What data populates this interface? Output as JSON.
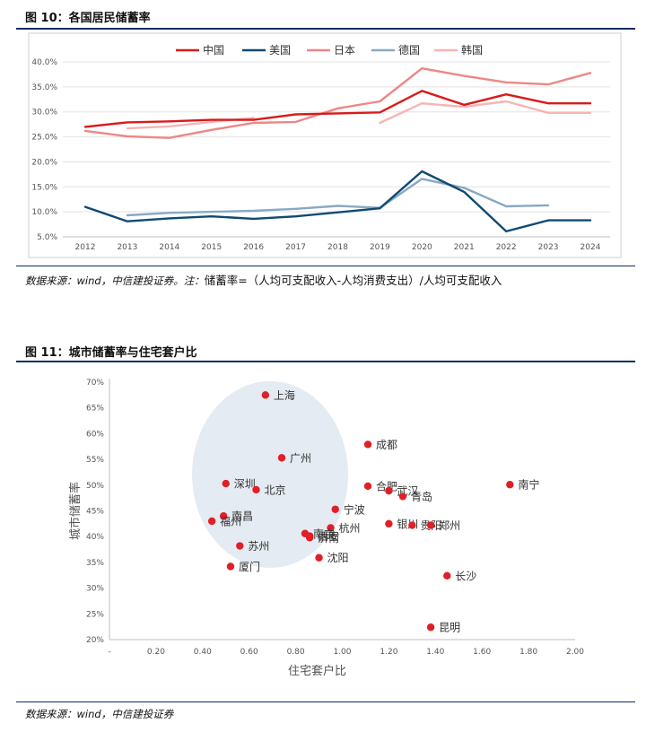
{
  "figure1": {
    "title": "图 10：各国居民储蓄率",
    "source_prefix": "数据来源：wind，中信建投证券。注：",
    "source_note": "储蓄率=（人均可支配收入-人均消费支出）/人均可支配收入"
  },
  "figure2": {
    "title": "图 11：城市储蓄率与住宅套户比",
    "source": "数据来源：wind，中信建投证券"
  },
  "chart_data": [
    {
      "type": "line",
      "title": "",
      "xlabel": "",
      "ylabel": "",
      "x": [
        "2012",
        "2013",
        "2014",
        "2015",
        "2016",
        "2017",
        "2018",
        "2019",
        "2020",
        "2021",
        "2022",
        "2023",
        "2024"
      ],
      "yticks": [
        "5.0%",
        "10.0%",
        "15.0%",
        "20.0%",
        "25.0%",
        "30.0%",
        "35.0%",
        "40.0%"
      ],
      "ylim": [
        5,
        40
      ],
      "grid": "horizontal",
      "legend_position": "top",
      "series": [
        {
          "name": "中国",
          "color": "#d91a1a",
          "values": [
            27.0,
            27.9,
            28.1,
            28.4,
            28.4,
            29.5,
            29.7,
            29.9,
            34.2,
            31.4,
            33.5,
            31.7,
            31.7
          ]
        },
        {
          "name": "美国",
          "color": "#0f4a73",
          "values": [
            11.0,
            8.1,
            8.7,
            9.1,
            8.6,
            9.1,
            9.9,
            10.7,
            18.1,
            14.0,
            6.1,
            8.3,
            8.3
          ]
        },
        {
          "name": "日本",
          "color": "#ee8785",
          "values": [
            26.2,
            25.1,
            24.8,
            26.4,
            27.8,
            28.0,
            30.7,
            32.1,
            38.7,
            37.2,
            35.9,
            35.5,
            37.8
          ]
        },
        {
          "name": "德国",
          "color": "#88a9c4",
          "values": [
            null,
            9.3,
            9.8,
            10.0,
            10.2,
            10.6,
            11.2,
            10.8,
            16.6,
            14.8,
            11.1,
            11.3,
            null
          ]
        },
        {
          "name": "韩国",
          "color": "#f5b5b5",
          "values": [
            null,
            26.7,
            27.1,
            28.0,
            28.8,
            null,
            null,
            27.8,
            31.7,
            31.0,
            32.1,
            29.8,
            29.8
          ]
        }
      ]
    },
    {
      "type": "scatter",
      "title": "",
      "xlabel": "住宅套户比",
      "ylabel": "城市储蓄率",
      "xticks": [
        "-",
        "0.20",
        "0.40",
        "0.60",
        "0.80",
        "1.00",
        "1.20",
        "1.40",
        "1.60",
        "1.80",
        "2.00"
      ],
      "yticks": [
        "20%",
        "25%",
        "30%",
        "35%",
        "40%",
        "45%",
        "50%",
        "55%",
        "60%",
        "65%",
        "70%"
      ],
      "xlim": [
        0,
        2.0
      ],
      "ylim": [
        20,
        70
      ],
      "point_color": "#e01f26",
      "highlight_ellipse_color": "#e4ebf2",
      "points": [
        {
          "label": "上海",
          "x": 0.67,
          "y": 67.5
        },
        {
          "label": "成都",
          "x": 1.11,
          "y": 57.9
        },
        {
          "label": "广州",
          "x": 0.74,
          "y": 55.3
        },
        {
          "label": "深圳",
          "x": 0.5,
          "y": 50.3
        },
        {
          "label": "北京",
          "x": 0.63,
          "y": 49.1
        },
        {
          "label": "合肥",
          "x": 1.11,
          "y": 49.8
        },
        {
          "label": "武汉",
          "x": 1.2,
          "y": 48.9
        },
        {
          "label": "青岛",
          "x": 1.26,
          "y": 47.8
        },
        {
          "label": "南宁",
          "x": 1.72,
          "y": 50.1
        },
        {
          "label": "宁波",
          "x": 0.97,
          "y": 45.3
        },
        {
          "label": "南昌",
          "x": 0.49,
          "y": 44.0
        },
        {
          "label": "福州",
          "x": 0.44,
          "y": 43.0
        },
        {
          "label": "银川",
          "x": 1.2,
          "y": 42.5
        },
        {
          "label": "贵阳",
          "x": 1.3,
          "y": 42.2
        },
        {
          "label": "郑州",
          "x": 1.38,
          "y": 42.2
        },
        {
          "label": "杭州",
          "x": 0.95,
          "y": 41.7
        },
        {
          "label": "南京",
          "x": 0.84,
          "y": 40.6
        },
        {
          "label": "济南",
          "x": 0.86,
          "y": 39.8
        },
        {
          "label": "西安",
          "x": 0.86,
          "y": 40.1
        },
        {
          "label": "苏州",
          "x": 0.56,
          "y": 38.2
        },
        {
          "label": "沈阳",
          "x": 0.9,
          "y": 35.9
        },
        {
          "label": "厦门",
          "x": 0.52,
          "y": 34.2
        },
        {
          "label": "长沙",
          "x": 1.45,
          "y": 32.4
        },
        {
          "label": "昆明",
          "x": 1.38,
          "y": 22.4
        }
      ]
    }
  ]
}
